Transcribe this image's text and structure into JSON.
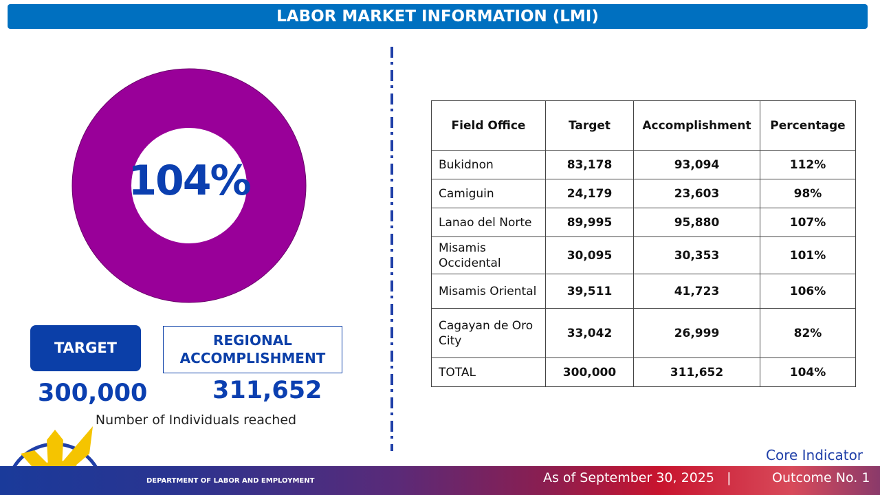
{
  "header": {
    "title": "LABOR MARKET INFORMATION (LMI)"
  },
  "chart_data": {
    "type": "pie",
    "style": "donut",
    "values": [
      104
    ],
    "center_label": "104%",
    "colors": [
      "#990099"
    ]
  },
  "summary": {
    "target_label": "TARGET",
    "target_value": "300,000",
    "accomplishment_label_1": "REGIONAL",
    "accomplishment_label_2": "ACCOMPLISHMENT",
    "accomplishment_value": "311,652",
    "caption": "Number of Individuals reached"
  },
  "table": {
    "headers": [
      "Field Office",
      "Target",
      "Accomplishment",
      "Percentage"
    ],
    "rows": [
      [
        "Bukidnon",
        "83,178",
        "93,094",
        "112%"
      ],
      [
        "Camiguin",
        "24,179",
        "23,603",
        "98%"
      ],
      [
        "Lanao del Norte",
        "89,995",
        "95,880",
        "107%"
      ],
      [
        "Misamis Occidental",
        "30,095",
        "30,353",
        "101%"
      ],
      [
        "Misamis Oriental",
        "39,511",
        "41,723",
        "106%"
      ],
      [
        "Cagayan de Oro City",
        "33,042",
        "26,999",
        "82%"
      ],
      [
        "TOTAL",
        "300,000",
        "311,652",
        "104%"
      ]
    ]
  },
  "footer": {
    "department": "DEPARTMENT OF LABOR AND EMPLOYMENT",
    "as_of": "As of September 30, 2025   |",
    "outcome": "Outcome No. 1",
    "core": "Core Indicator"
  },
  "colors": {
    "header": "#0070c0",
    "donut": "#990099",
    "accent": "#0b3fb0"
  }
}
